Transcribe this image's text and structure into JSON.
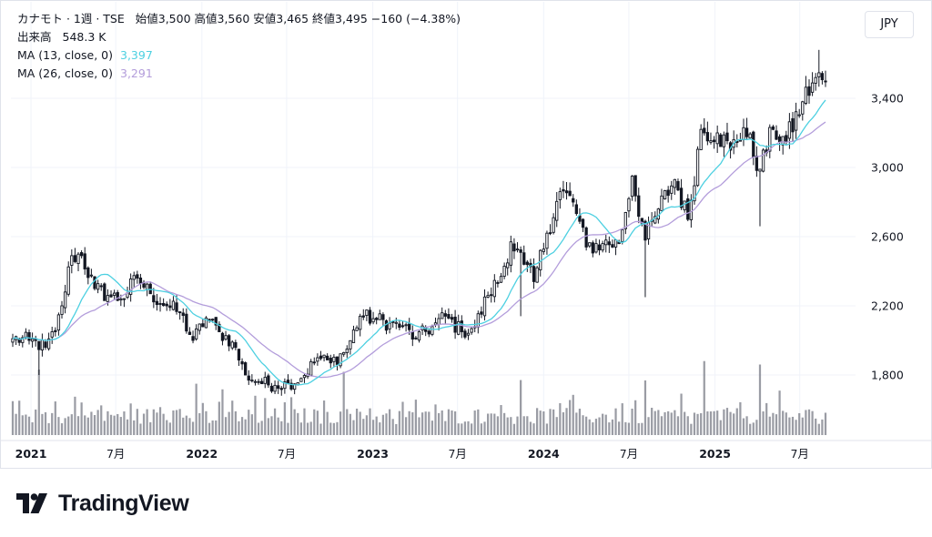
{
  "legend": {
    "symbol": "カナモト · 1週 · TSE",
    "ohlc_text": "始値3,500  高値3,560  安値3,465  終値3,495  −160 (−4.38%)",
    "volume_label": "出来高",
    "volume_value": "548.3 K",
    "ma1_label": "MA (13, close, 0)",
    "ma1_value": "3,397",
    "ma2_label": "MA (26, close, 0)",
    "ma2_value": "3,291"
  },
  "currency_button": "JPY",
  "brand": {
    "name": "TradingView",
    "logo_icon": "tradingview-logo-icon"
  },
  "colors": {
    "ma13": "#4dd0e1",
    "ma26": "#b39ddb",
    "candle": "#131722",
    "volume": "#787b86",
    "grid": "#f0f3fa"
  },
  "chart_data": {
    "type": "candlestick",
    "timeframe": "1週",
    "y_axis": {
      "ticks": [
        "1,800",
        "2,200",
        "2,600",
        "3,000",
        "3,400"
      ],
      "range": [
        1540,
        3780
      ]
    },
    "x_axis": {
      "ticks": [
        {
          "label": "2021",
          "bold": true
        },
        {
          "label": "7月",
          "bold": false
        },
        {
          "label": "2022",
          "bold": true
        },
        {
          "label": "7月",
          "bold": false
        },
        {
          "label": "2023",
          "bold": true
        },
        {
          "label": "7月",
          "bold": false
        },
        {
          "label": "2024",
          "bold": true
        },
        {
          "label": "7月",
          "bold": false
        },
        {
          "label": "2025",
          "bold": true
        },
        {
          "label": "7月",
          "bold": false
        }
      ]
    },
    "last": {
      "open": 3500,
      "high": 3560,
      "low": 3465,
      "close": 3495,
      "change": -160,
      "change_pct": -4.38,
      "volume": "548.3K"
    },
    "close_anchors": [
      [
        "2020-11-23",
        2010
      ],
      [
        "2020-12-28",
        2000
      ],
      [
        "2021-02-01",
        1960
      ],
      [
        "2021-02-22",
        2050
      ],
      [
        "2021-03-08",
        2200
      ],
      [
        "2021-03-29",
        2490
      ],
      [
        "2021-04-19",
        2490
      ],
      [
        "2021-05-17",
        2300
      ],
      [
        "2021-06-14",
        2260
      ],
      [
        "2021-07-12",
        2240
      ],
      [
        "2021-08-16",
        2360
      ],
      [
        "2021-09-13",
        2270
      ],
      [
        "2021-10-18",
        2200
      ],
      [
        "2021-11-15",
        2160
      ],
      [
        "2021-12-13",
        2000
      ],
      [
        "2022-01-10",
        2130
      ],
      [
        "2022-02-07",
        2050
      ],
      [
        "2022-03-07",
        1990
      ],
      [
        "2022-04-04",
        1800
      ],
      [
        "2022-05-02",
        1760
      ],
      [
        "2022-06-06",
        1740
      ],
      [
        "2022-07-04",
        1750
      ],
      [
        "2022-08-01",
        1780
      ],
      [
        "2022-09-05",
        1900
      ],
      [
        "2022-10-03",
        1870
      ],
      [
        "2022-11-07",
        1950
      ],
      [
        "2022-12-05",
        2140
      ],
      [
        "2023-01-09",
        2120
      ],
      [
        "2023-02-06",
        2100
      ],
      [
        "2023-03-06",
        2080
      ],
      [
        "2023-04-03",
        2010
      ],
      [
        "2023-05-08",
        2080
      ],
      [
        "2023-06-05",
        2140
      ],
      [
        "2023-07-10",
        2050
      ],
      [
        "2023-08-07",
        2080
      ],
      [
        "2023-09-04",
        2260
      ],
      [
        "2023-10-02",
        2370
      ],
      [
        "2023-10-23",
        2570
      ],
      [
        "2023-11-20",
        2440
      ],
      [
        "2023-12-11",
        2340
      ],
      [
        "2024-01-08",
        2620
      ],
      [
        "2024-02-05",
        2860
      ],
      [
        "2024-03-04",
        2800
      ],
      [
        "2024-04-01",
        2540
      ],
      [
        "2024-05-06",
        2560
      ],
      [
        "2024-06-10",
        2560
      ],
      [
        "2024-07-08",
        2950
      ],
      [
        "2024-08-05",
        2580
      ],
      [
        "2024-09-02",
        2760
      ],
      [
        "2024-10-07",
        2930
      ],
      [
        "2024-11-04",
        2700
      ],
      [
        "2024-12-02",
        3220
      ],
      [
        "2025-01-06",
        3200
      ],
      [
        "2025-02-03",
        3100
      ],
      [
        "2025-03-03",
        3230
      ],
      [
        "2025-04-07",
        2990
      ],
      [
        "2025-05-05",
        3220
      ],
      [
        "2025-06-02",
        3150
      ],
      [
        "2025-07-07",
        3380
      ],
      [
        "2025-08-04",
        3520
      ],
      [
        "2025-08-25",
        3495
      ]
    ],
    "series": [
      {
        "name": "MA (13, close, 0)",
        "color": "#4dd0e1",
        "last": 3397
      },
      {
        "name": "MA (26, close, 0)",
        "color": "#b39ddb",
        "last": 3291
      }
    ]
  }
}
